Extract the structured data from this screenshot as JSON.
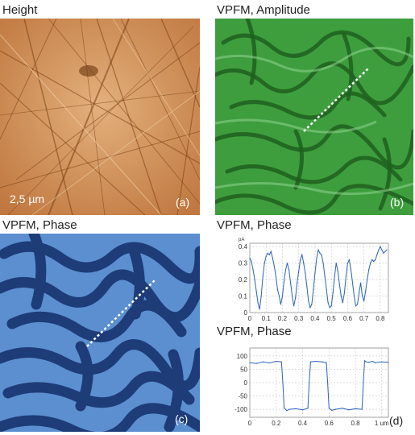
{
  "figure": {
    "panel_a": {
      "title": "Height",
      "scale_bar": "2,5 µm",
      "label": "(a)"
    },
    "panel_b": {
      "title": "VPFM, Amplitude",
      "label": "(b)"
    },
    "panel_c": {
      "title": "VPFM, Phase",
      "label": "(c)"
    },
    "panel_d_top": {
      "title": "VPFM, Phase"
    },
    "panel_d_bottom": {
      "title": "VPFM, Phase",
      "label": "(d)"
    }
  },
  "colors": {
    "height_base": "#c8844a",
    "amplitude_base": "#3a9a3a",
    "phase_light": "#5b8fd0",
    "phase_dark": "#1d3c78",
    "profile_line": "#2a62b8"
  },
  "chart_data": [
    {
      "type": "line",
      "title": "VPFM, Phase",
      "xlabel": "",
      "ylabel": "",
      "x_unit": "um",
      "y_unit": "pA",
      "xlim": [
        0,
        0.85
      ],
      "ylim": [
        0,
        0.42
      ],
      "x_ticks": [
        "0",
        "0.1",
        "0.2",
        "0.3",
        "0.4",
        "0.5",
        "0.6",
        "0.7",
        "0.8"
      ],
      "y_ticks": [
        "0",
        "0.1",
        "0.2",
        "0.3",
        "0.4"
      ],
      "grid": true,
      "series": [
        {
          "x": [
            0,
            0.01,
            0.02,
            0.03,
            0.04,
            0.05,
            0.06,
            0.07,
            0.08,
            0.09,
            0.1,
            0.11,
            0.12,
            0.13,
            0.14,
            0.15,
            0.16,
            0.17,
            0.18,
            0.19,
            0.2,
            0.21,
            0.22,
            0.23,
            0.24,
            0.25,
            0.26,
            0.27,
            0.28,
            0.29,
            0.3,
            0.31,
            0.32,
            0.33,
            0.34,
            0.35,
            0.36,
            0.37,
            0.38,
            0.39,
            0.4,
            0.41,
            0.42,
            0.43,
            0.44,
            0.45,
            0.46,
            0.47,
            0.48,
            0.49,
            0.5,
            0.51,
            0.52,
            0.53,
            0.54,
            0.55,
            0.56,
            0.57,
            0.58,
            0.59,
            0.6,
            0.61,
            0.62,
            0.63,
            0.64,
            0.65,
            0.66,
            0.67,
            0.68,
            0.69,
            0.7,
            0.71,
            0.72,
            0.73,
            0.74,
            0.75,
            0.76,
            0.77,
            0.78,
            0.79,
            0.8,
            0.81,
            0.82,
            0.83,
            0.84
          ],
          "y": [
            0.33,
            0.31,
            0.26,
            0.2,
            0.13,
            0.06,
            0.02,
            0.1,
            0.22,
            0.3,
            0.34,
            0.36,
            0.35,
            0.37,
            0.33,
            0.28,
            0.22,
            0.14,
            0.1,
            0.05,
            0.1,
            0.19,
            0.26,
            0.3,
            0.26,
            0.18,
            0.1,
            0.04,
            0.09,
            0.18,
            0.25,
            0.32,
            0.35,
            0.3,
            0.24,
            0.16,
            0.07,
            0.03,
            0.05,
            0.14,
            0.24,
            0.33,
            0.38,
            0.36,
            0.35,
            0.3,
            0.22,
            0.14,
            0.06,
            0.03,
            0.04,
            0.12,
            0.22,
            0.3,
            0.25,
            0.17,
            0.1,
            0.06,
            0.12,
            0.22,
            0.3,
            0.32,
            0.26,
            0.18,
            0.1,
            0.04,
            0.05,
            0.12,
            0.18,
            0.1,
            0.07,
            0.13,
            0.2,
            0.26,
            0.3,
            0.32,
            0.31,
            0.32,
            0.35,
            0.38,
            0.4,
            0.38,
            0.36,
            0.37,
            0.38
          ]
        }
      ]
    },
    {
      "type": "line",
      "title": "VPFM, Phase",
      "xlabel": "",
      "ylabel": "",
      "x_unit": "um",
      "xlim": [
        0,
        1.05
      ],
      "ylim": [
        -130,
        130
      ],
      "x_ticks": [
        "0",
        "0.2",
        "0.4",
        "0.6",
        "0.8",
        "1 um"
      ],
      "y_ticks": [
        "100",
        "50",
        "0",
        "-50",
        "-100"
      ],
      "grid": true,
      "series": [
        {
          "x": [
            0,
            0.05,
            0.1,
            0.15,
            0.2,
            0.24,
            0.25,
            0.26,
            0.28,
            0.3,
            0.35,
            0.4,
            0.44,
            0.45,
            0.46,
            0.5,
            0.55,
            0.58,
            0.59,
            0.6,
            0.62,
            0.65,
            0.7,
            0.75,
            0.8,
            0.85,
            0.86,
            0.87,
            0.88,
            0.9,
            0.93,
            0.95,
            1.0,
            1.05
          ],
          "y": [
            75,
            72,
            78,
            74,
            80,
            78,
            0,
            -95,
            -105,
            -100,
            -98,
            -102,
            -96,
            0,
            78,
            80,
            78,
            75,
            0,
            -95,
            -104,
            -100,
            -96,
            -102,
            -98,
            -100,
            0,
            82,
            78,
            76,
            80,
            75,
            78,
            76
          ]
        }
      ]
    }
  ]
}
